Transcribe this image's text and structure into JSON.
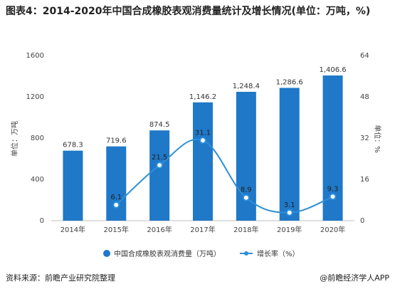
{
  "title": "图表4：2014-2020年中国合成橡胶表观消费量统计及增长情况(单位：万吨，%)",
  "source": "资料来源：前瞻产业研究院整理",
  "brand": "@前瞻经济学人APP",
  "colors": {
    "bar": "#1f78c8",
    "line": "#2d8fd8",
    "pointFill": "#ffffff",
    "grid": "#d9d9d9"
  },
  "chart_data": {
    "type": "bar",
    "categories": [
      "2014年",
      "2015年",
      "2016年",
      "2017年",
      "2018年",
      "2019年",
      "2020年"
    ],
    "series": [
      {
        "name": "中国合成橡胶表观消费量（万吨）",
        "axis": "left",
        "values": [
          678.3,
          719.6,
          874.5,
          1146.2,
          1248.4,
          1286.6,
          1406.6
        ],
        "labels": [
          "678.3",
          "719.6",
          "874.5",
          "1,146.2",
          "1,248.4",
          "1,286.6",
          "1,406.6"
        ]
      },
      {
        "name": "增长率（%）",
        "type": "line",
        "axis": "right",
        "values": [
          null,
          6.1,
          21.5,
          31.1,
          8.9,
          3.1,
          9.3
        ],
        "labels": [
          "",
          "6.1",
          "21.5",
          "31.1",
          "8.9",
          "3.1",
          "9.3"
        ]
      }
    ],
    "ylabel": "单位：万吨",
    "y2label": "单位：%",
    "ylim": [
      0,
      1600
    ],
    "y2lim": [
      0,
      64
    ],
    "yticks": [
      "0",
      "400",
      "800",
      "1200",
      "1600"
    ],
    "y2ticks": [
      "0",
      "16",
      "32",
      "48",
      "64"
    ],
    "legend": "bottom",
    "grid": false
  }
}
